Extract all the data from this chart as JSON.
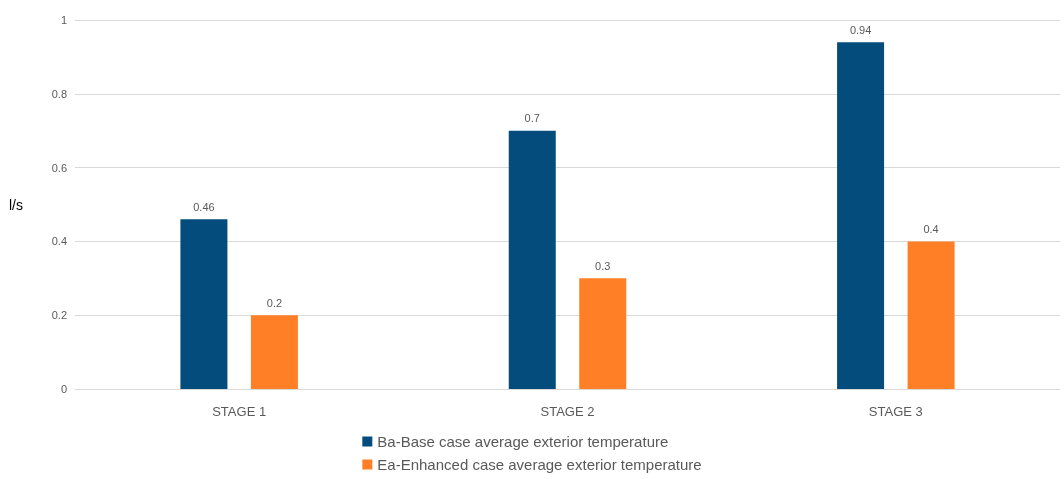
{
  "chart_data": {
    "type": "bar",
    "ylabel": "l/s",
    "categories": [
      "STAGE 1",
      "STAGE 2",
      "STAGE 3"
    ],
    "series": [
      {
        "name": "Ba-Base case average exterior temperature",
        "color": "#034c7c",
        "values": [
          0.46,
          0.7,
          0.94
        ]
      },
      {
        "name": "Ea-Enhanced case average exterior temperature",
        "color": "#fe7f26",
        "values": [
          0.2,
          0.3,
          0.4
        ]
      }
    ],
    "ylim": [
      0,
      1
    ],
    "yticks": [
      0,
      0.2,
      0.4,
      0.6,
      0.8,
      1
    ],
    "grid": "y",
    "legend": "bottom",
    "data_labels": true
  }
}
